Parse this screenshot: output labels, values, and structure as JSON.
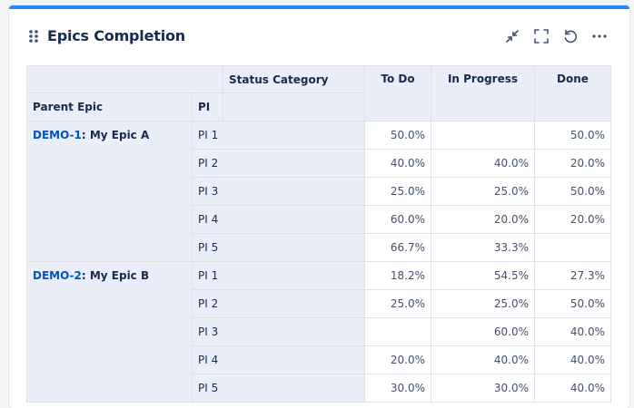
{
  "widget": {
    "title": "Epics Completion"
  },
  "table": {
    "status_category_label": "Status Category",
    "parent_epic_label": "Parent Epic",
    "pi_label": "PI",
    "columns": [
      "To Do",
      "In Progress",
      "Done"
    ],
    "epics": [
      {
        "key": "DEMO-1",
        "name": ": My Epic A",
        "rows": [
          {
            "pi": "PI 1",
            "values": [
              "50.0%",
              "",
              "50.0%"
            ]
          },
          {
            "pi": "PI 2",
            "values": [
              "40.0%",
              "40.0%",
              "20.0%"
            ]
          },
          {
            "pi": "PI 3",
            "values": [
              "25.0%",
              "25.0%",
              "50.0%"
            ]
          },
          {
            "pi": "PI 4",
            "values": [
              "60.0%",
              "20.0%",
              "20.0%"
            ]
          },
          {
            "pi": "PI 5",
            "values": [
              "66.7%",
              "33.3%",
              ""
            ]
          }
        ]
      },
      {
        "key": "DEMO-2",
        "name": ": My Epic B",
        "rows": [
          {
            "pi": "PI 1",
            "values": [
              "18.2%",
              "54.5%",
              "27.3%"
            ]
          },
          {
            "pi": "PI 2",
            "values": [
              "25.0%",
              "25.0%",
              "50.0%"
            ]
          },
          {
            "pi": "PI 3",
            "values": [
              "",
              "60.0%",
              "40.0%"
            ]
          },
          {
            "pi": "PI 4",
            "values": [
              "20.0%",
              "40.0%",
              "40.0%"
            ]
          },
          {
            "pi": "PI 5",
            "values": [
              "30.0%",
              "30.0%",
              "40.0%"
            ]
          }
        ]
      }
    ]
  },
  "icons": {
    "drag": "drag-handle-icon",
    "minimize": "minimize-icon",
    "fullscreen": "fullscreen-icon",
    "refresh": "refresh-icon",
    "more": "more-icon"
  }
}
